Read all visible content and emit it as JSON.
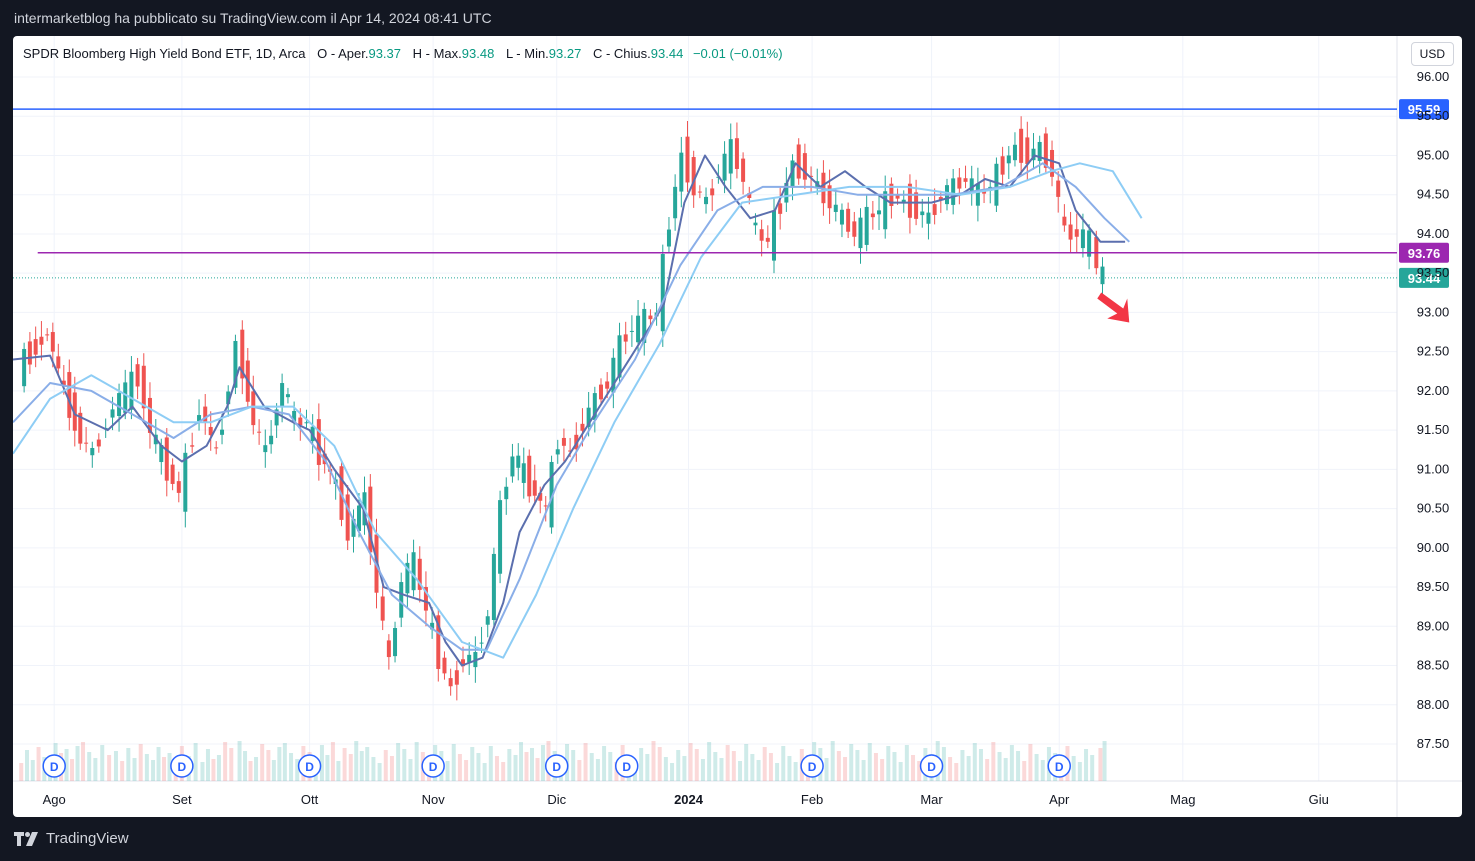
{
  "header": {
    "publish_text": "intermarketblog ha pubblicato su TradingView.com il Apr 14, 2024 08:41 UTC"
  },
  "legend": {
    "title": "SPDR Bloomberg High Yield Bond ETF, 1D, Arca",
    "open_label": "O - Aper.",
    "open_value": "93.37",
    "high_label": "H - Max.",
    "high_value": "93.48",
    "low_label": "L - Min.",
    "low_value": "93.27",
    "close_label": "C - Chius.",
    "close_value": "93.44",
    "change": "−0.01 (−0.01%)"
  },
  "currency": "USD",
  "footer": {
    "brand": "TradingView"
  },
  "colors": {
    "up": "#26a69a",
    "down": "#ef5350",
    "ma_fast": "#5b6fae",
    "ma_mid": "#8aaee8",
    "ma_slow": "#8ecdf5",
    "resistance": "#2962ff",
    "support": "#9c27b0",
    "last_price": "#26a69a",
    "arrow": "#f23645"
  },
  "chart_data": {
    "type": "candlestick",
    "symbol": "SPDR Bloomberg High Yield Bond ETF",
    "interval": "1D",
    "exchange": "Arca",
    "ylim": [
      87.2,
      96.2
    ],
    "y_ticks": [
      "96.00",
      "95.50",
      "95.00",
      "94.50",
      "94.00",
      "93.50",
      "93.00",
      "92.50",
      "92.00",
      "91.50",
      "91.00",
      "90.50",
      "90.00",
      "89.50",
      "89.00",
      "88.50",
      "88.00",
      "87.50"
    ],
    "x_labels": [
      "Ago",
      "Set",
      "Ott",
      "Nov",
      "Dic",
      "2024",
      "Feb",
      "Mar",
      "Apr",
      "Mag",
      "Giu"
    ],
    "x_label_dates": [
      "2023-08-01",
      "2023-09-01",
      "2023-10-02",
      "2023-11-01",
      "2023-12-01",
      "2024-01-02",
      "2024-02-01",
      "2024-03-01",
      "2024-04-01",
      "2024-05-01",
      "2024-06-03"
    ],
    "x_range": [
      "2023-07-22",
      "2024-06-22"
    ],
    "dividend_dates": [
      "2023-08-01",
      "2023-09-01",
      "2023-10-02",
      "2023-11-01",
      "2023-12-01",
      "2023-12-18",
      "2024-02-01",
      "2024-03-01",
      "2024-04-01"
    ],
    "dividend_marker": "D",
    "horizontal_lines": [
      {
        "name": "resistance",
        "value": 95.59,
        "label": "95.59",
        "from": "2023-07-22"
      },
      {
        "name": "support",
        "value": 93.76,
        "label": "93.76",
        "from": "2023-07-28"
      }
    ],
    "last_price": {
      "value": 93.44,
      "label": "93.44"
    },
    "trend_arrow": "down",
    "closes": [
      {
        "date": "2023-07-24",
        "close": 92.3
      },
      {
        "date": "2023-07-31",
        "close": 92.75
      },
      {
        "date": "2023-08-04",
        "close": 92.0
      },
      {
        "date": "2023-08-08",
        "close": 91.4
      },
      {
        "date": "2023-08-11",
        "close": 91.2
      },
      {
        "date": "2023-08-16",
        "close": 91.8
      },
      {
        "date": "2023-08-22",
        "close": 92.2
      },
      {
        "date": "2023-08-25",
        "close": 91.5
      },
      {
        "date": "2023-08-29",
        "close": 91.0
      },
      {
        "date": "2023-09-01",
        "close": 90.7
      },
      {
        "date": "2023-09-06",
        "close": 91.8
      },
      {
        "date": "2023-09-10",
        "close": 91.2
      },
      {
        "date": "2023-09-13",
        "close": 92.1
      },
      {
        "date": "2023-09-15",
        "close": 92.6
      },
      {
        "date": "2023-09-19",
        "close": 91.6
      },
      {
        "date": "2023-09-22",
        "close": 91.2
      },
      {
        "date": "2023-09-26",
        "close": 92.1
      },
      {
        "date": "2023-09-29",
        "close": 91.6
      },
      {
        "date": "2023-10-02",
        "close": 91.6
      },
      {
        "date": "2023-10-05",
        "close": 91.2
      },
      {
        "date": "2023-10-09",
        "close": 90.8
      },
      {
        "date": "2023-10-12",
        "close": 90.2
      },
      {
        "date": "2023-10-16",
        "close": 90.6
      },
      {
        "date": "2023-10-19",
        "close": 89.5
      },
      {
        "date": "2023-10-22",
        "close": 88.5
      },
      {
        "date": "2023-10-25",
        "close": 89.6
      },
      {
        "date": "2023-10-28",
        "close": 89.8
      },
      {
        "date": "2023-10-31",
        "close": 89.2
      },
      {
        "date": "2023-11-03",
        "close": 88.6
      },
      {
        "date": "2023-11-06",
        "close": 88.2
      },
      {
        "date": "2023-11-09",
        "close": 88.6
      },
      {
        "date": "2023-11-12",
        "close": 88.6
      },
      {
        "date": "2023-11-15",
        "close": 89.2
      },
      {
        "date": "2023-11-18",
        "close": 90.5
      },
      {
        "date": "2023-11-21",
        "close": 91.2
      },
      {
        "date": "2023-11-25",
        "close": 90.8
      },
      {
        "date": "2023-11-29",
        "close": 90.5
      },
      {
        "date": "2023-12-02",
        "close": 91.4
      },
      {
        "date": "2023-12-05",
        "close": 91.2
      },
      {
        "date": "2023-12-08",
        "close": 91.6
      },
      {
        "date": "2023-12-11",
        "close": 91.9
      },
      {
        "date": "2023-12-14",
        "close": 92.1
      },
      {
        "date": "2023-12-17",
        "close": 92.6
      },
      {
        "date": "2023-12-20",
        "close": 92.8
      },
      {
        "date": "2023-12-23",
        "close": 92.9
      },
      {
        "date": "2023-12-26",
        "close": 93.0
      },
      {
        "date": "2023-12-29",
        "close": 94.2
      },
      {
        "date": "2024-01-01",
        "close": 95.0
      },
      {
        "date": "2024-01-04",
        "close": 94.6
      },
      {
        "date": "2024-01-07",
        "close": 94.4
      },
      {
        "date": "2024-01-10",
        "close": 94.8
      },
      {
        "date": "2024-01-13",
        "close": 95.1
      },
      {
        "date": "2024-01-16",
        "close": 94.7
      },
      {
        "date": "2024-01-19",
        "close": 94.0
      },
      {
        "date": "2024-01-22",
        "close": 93.9
      },
      {
        "date": "2024-01-25",
        "close": 94.4
      },
      {
        "date": "2024-01-28",
        "close": 94.9
      },
      {
        "date": "2024-01-31",
        "close": 94.8
      },
      {
        "date": "2024-02-03",
        "close": 94.6
      },
      {
        "date": "2024-02-06",
        "close": 94.4
      },
      {
        "date": "2024-02-09",
        "close": 94.2
      },
      {
        "date": "2024-02-12",
        "close": 94.0
      },
      {
        "date": "2024-02-15",
        "close": 94.2
      },
      {
        "date": "2024-02-18",
        "close": 94.3
      },
      {
        "date": "2024-02-21",
        "close": 94.5
      },
      {
        "date": "2024-02-24",
        "close": 94.4
      },
      {
        "date": "2024-02-27",
        "close": 94.3
      },
      {
        "date": "2024-03-01",
        "close": 94.2
      },
      {
        "date": "2024-03-04",
        "close": 94.5
      },
      {
        "date": "2024-03-07",
        "close": 94.6
      },
      {
        "date": "2024-03-10",
        "close": 94.7
      },
      {
        "date": "2024-03-13",
        "close": 94.5
      },
      {
        "date": "2024-03-16",
        "close": 94.6
      },
      {
        "date": "2024-03-19",
        "close": 94.9
      },
      {
        "date": "2024-03-22",
        "close": 95.1
      },
      {
        "date": "2024-03-25",
        "close": 95.0
      },
      {
        "date": "2024-03-28",
        "close": 95.1
      },
      {
        "date": "2024-03-31",
        "close": 94.8
      },
      {
        "date": "2024-04-03",
        "close": 94.0
      },
      {
        "date": "2024-04-06",
        "close": 94.0
      },
      {
        "date": "2024-04-09",
        "close": 93.9
      },
      {
        "date": "2024-04-11",
        "close": 93.6
      },
      {
        "date": "2024-04-12",
        "close": 93.44
      }
    ],
    "moving_averages": [
      {
        "color": "#5b6fae",
        "points": [
          [
            "2023-07-22",
            92.4
          ],
          [
            "2023-07-31",
            92.45
          ],
          [
            "2023-08-06",
            91.7
          ],
          [
            "2023-08-14",
            91.5
          ],
          [
            "2023-08-20",
            91.8
          ],
          [
            "2023-08-27",
            91.3
          ],
          [
            "2023-09-01",
            91.1
          ],
          [
            "2023-09-07",
            91.3
          ],
          [
            "2023-09-12",
            91.8
          ],
          [
            "2023-09-15",
            92.3
          ],
          [
            "2023-09-21",
            91.8
          ],
          [
            "2023-09-28",
            91.6
          ],
          [
            "2023-10-02",
            91.5
          ],
          [
            "2023-10-08",
            91.0
          ],
          [
            "2023-10-15",
            90.5
          ],
          [
            "2023-10-20",
            89.5
          ],
          [
            "2023-10-25",
            89.4
          ],
          [
            "2023-10-31",
            89.3
          ],
          [
            "2023-11-04",
            88.8
          ],
          [
            "2023-11-08",
            88.5
          ],
          [
            "2023-11-13",
            88.6
          ],
          [
            "2023-11-18",
            89.3
          ],
          [
            "2023-11-22",
            90.2
          ],
          [
            "2023-11-28",
            90.8
          ],
          [
            "2023-12-03",
            91.1
          ],
          [
            "2023-12-09",
            91.6
          ],
          [
            "2023-12-15",
            92.1
          ],
          [
            "2023-12-21",
            92.6
          ],
          [
            "2023-12-27",
            93.1
          ],
          [
            "2024-01-01",
            94.4
          ],
          [
            "2024-01-06",
            95.0
          ],
          [
            "2024-01-11",
            94.6
          ],
          [
            "2024-01-17",
            94.2
          ],
          [
            "2024-01-23",
            94.3
          ],
          [
            "2024-01-28",
            94.9
          ],
          [
            "2024-02-03",
            94.6
          ],
          [
            "2024-02-09",
            94.8
          ],
          [
            "2024-02-14",
            94.6
          ],
          [
            "2024-02-20",
            94.4
          ],
          [
            "2024-02-25",
            94.4
          ],
          [
            "2024-03-01",
            94.4
          ],
          [
            "2024-03-08",
            94.5
          ],
          [
            "2024-03-14",
            94.7
          ],
          [
            "2024-03-20",
            94.6
          ],
          [
            "2024-03-26",
            95.0
          ],
          [
            "2024-04-01",
            94.9
          ],
          [
            "2024-04-05",
            94.3
          ],
          [
            "2024-04-11",
            93.9
          ],
          [
            "2024-04-17",
            93.9
          ]
        ]
      },
      {
        "color": "#8aaee8",
        "points": [
          [
            "2023-07-22",
            91.6
          ],
          [
            "2023-07-31",
            92.1
          ],
          [
            "2023-08-10",
            92.0
          ],
          [
            "2023-08-20",
            91.7
          ],
          [
            "2023-08-30",
            91.4
          ],
          [
            "2023-09-08",
            91.7
          ],
          [
            "2023-09-18",
            91.8
          ],
          [
            "2023-09-27",
            91.7
          ],
          [
            "2023-10-06",
            91.1
          ],
          [
            "2023-10-14",
            90.2
          ],
          [
            "2023-10-22",
            89.4
          ],
          [
            "2023-10-31",
            89.0
          ],
          [
            "2023-11-08",
            88.7
          ],
          [
            "2023-11-14",
            88.7
          ],
          [
            "2023-11-22",
            89.6
          ],
          [
            "2023-12-01",
            90.8
          ],
          [
            "2023-12-10",
            91.6
          ],
          [
            "2023-12-20",
            92.4
          ],
          [
            "2023-12-31",
            93.6
          ],
          [
            "2024-01-09",
            94.3
          ],
          [
            "2024-01-20",
            94.6
          ],
          [
            "2024-02-01",
            94.6
          ],
          [
            "2024-02-12",
            94.5
          ],
          [
            "2024-02-24",
            94.5
          ],
          [
            "2024-03-06",
            94.5
          ],
          [
            "2024-03-18",
            94.6
          ],
          [
            "2024-03-28",
            94.9
          ],
          [
            "2024-04-05",
            94.6
          ],
          [
            "2024-04-12",
            94.2
          ],
          [
            "2024-04-18",
            93.9
          ]
        ]
      },
      {
        "color": "#8ecdf5",
        "points": [
          [
            "2023-07-22",
            91.2
          ],
          [
            "2023-07-31",
            91.9
          ],
          [
            "2023-08-10",
            92.2
          ],
          [
            "2023-08-20",
            91.9
          ],
          [
            "2023-08-30",
            91.6
          ],
          [
            "2023-09-08",
            91.6
          ],
          [
            "2023-09-18",
            91.8
          ],
          [
            "2023-09-28",
            91.8
          ],
          [
            "2023-10-08",
            91.3
          ],
          [
            "2023-10-18",
            90.2
          ],
          [
            "2023-10-28",
            89.6
          ],
          [
            "2023-11-08",
            88.8
          ],
          [
            "2023-11-18",
            88.6
          ],
          [
            "2023-11-26",
            89.4
          ],
          [
            "2023-12-05",
            90.5
          ],
          [
            "2023-12-15",
            91.6
          ],
          [
            "2023-12-26",
            92.6
          ],
          [
            "2024-01-05",
            93.7
          ],
          [
            "2024-01-15",
            94.4
          ],
          [
            "2024-01-28",
            94.5
          ],
          [
            "2024-02-10",
            94.6
          ],
          [
            "2024-02-24",
            94.6
          ],
          [
            "2024-03-08",
            94.5
          ],
          [
            "2024-03-20",
            94.6
          ],
          [
            "2024-03-30",
            94.8
          ],
          [
            "2024-04-06",
            94.9
          ],
          [
            "2024-04-14",
            94.8
          ],
          [
            "2024-04-21",
            94.2
          ]
        ]
      }
    ]
  }
}
